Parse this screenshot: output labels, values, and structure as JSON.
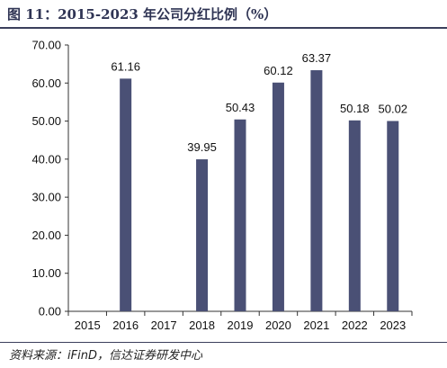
{
  "header": {
    "title": "图 11：2015-2023 年公司分红比例（%）"
  },
  "footer": {
    "source": "资料来源：iFinD，信达证券研发中心"
  },
  "colors": {
    "bar": "#4a5075",
    "axis": "#333333",
    "accent": "#3b3f5c"
  },
  "chart_data": {
    "type": "bar",
    "categories": [
      "2015",
      "2016",
      "2017",
      "2018",
      "2019",
      "2020",
      "2021",
      "2022",
      "2023"
    ],
    "values": [
      null,
      61.16,
      null,
      39.95,
      50.43,
      60.12,
      63.37,
      50.18,
      50.02
    ],
    "data_labels": [
      "",
      "61.16",
      "",
      "39.95",
      "50.43",
      "60.12",
      "63.37",
      "50.18",
      "50.02"
    ],
    "y_ticks": [
      "0.00",
      "10.00",
      "20.00",
      "30.00",
      "40.00",
      "50.00",
      "60.00",
      "70.00"
    ],
    "ylim": [
      0,
      70
    ],
    "grid": false,
    "legend": "none"
  }
}
